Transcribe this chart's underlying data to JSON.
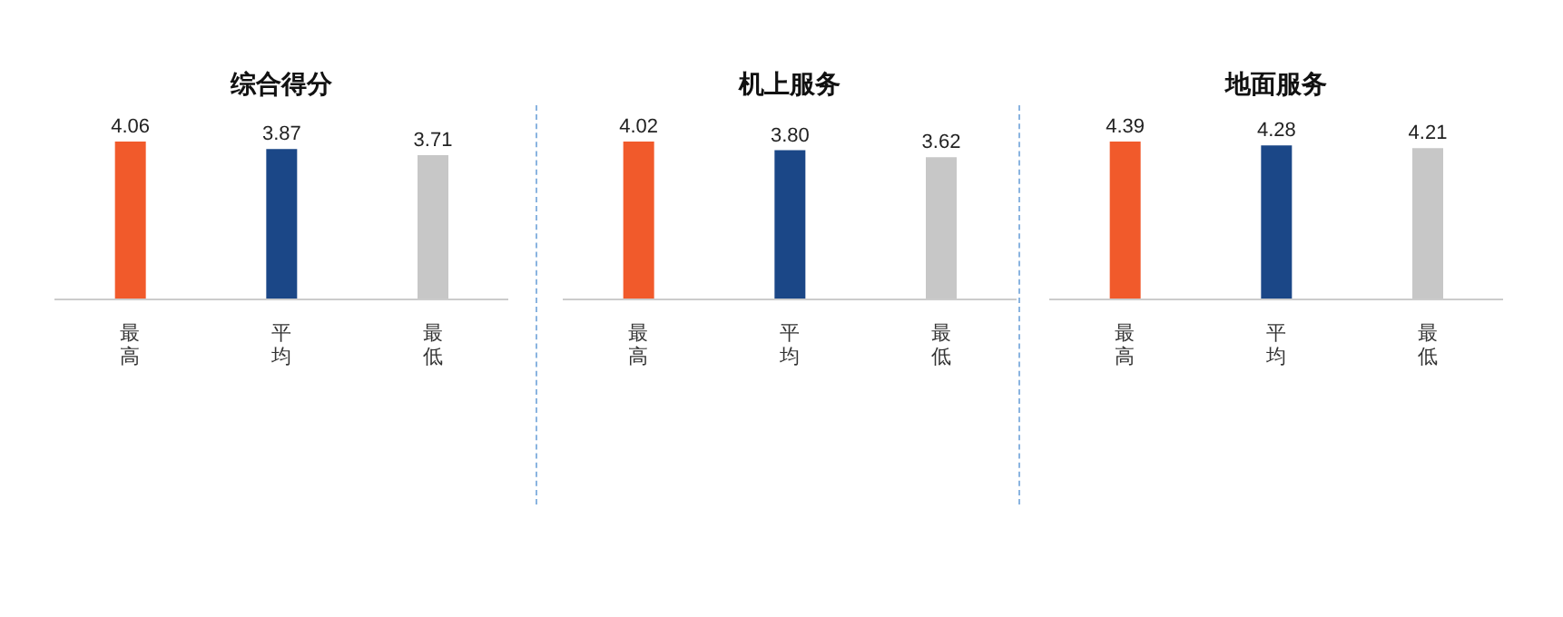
{
  "chart_data": [
    {
      "type": "bar",
      "title": "综合得分",
      "categories": [
        "最高",
        "平均",
        "最低"
      ],
      "values": [
        4.06,
        3.87,
        3.71
      ],
      "value_labels": [
        "4.06",
        "3.87",
        "3.71"
      ],
      "colors": [
        "#f15a2b",
        "#1b4787",
        "#c7c7c7"
      ],
      "tick_labels": "x"
    },
    {
      "type": "bar",
      "title": "机上服务",
      "categories": [
        "最高",
        "平均",
        "最低"
      ],
      "values": [
        4.02,
        3.8,
        3.62
      ],
      "value_labels": [
        "4.02",
        "3.80",
        "3.62"
      ],
      "colors": [
        "#f15a2b",
        "#1b4787",
        "#c7c7c7"
      ],
      "tick_labels": "x"
    },
    {
      "type": "bar",
      "title": "地面服务",
      "categories": [
        "最高",
        "平均",
        "最低"
      ],
      "values": [
        4.39,
        4.28,
        4.21
      ],
      "value_labels": [
        "4.39",
        "4.28",
        "4.21"
      ],
      "colors": [
        "#f15a2b",
        "#1b4787",
        "#c7c7c7"
      ],
      "tick_labels": "x"
    }
  ]
}
